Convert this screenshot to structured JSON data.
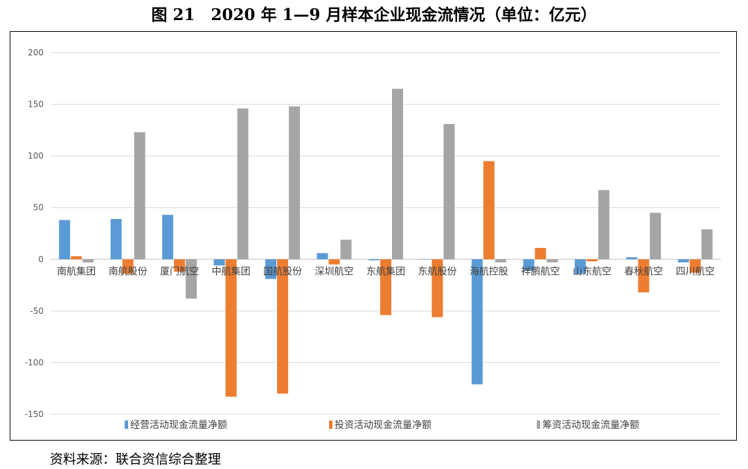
{
  "title": "图 21　2020 年 1—9 月样本企业现金流情况（单位：亿元）",
  "source": "资料来源：联合资信综合整理",
  "chart_data": {
    "type": "bar",
    "title": "图 21　2020 年 1—9 月样本企业现金流情况（单位：亿元）",
    "xlabel": "",
    "ylabel": "",
    "ylim": [
      -150,
      200
    ],
    "yticks": [
      200,
      150,
      100,
      50,
      0,
      -50,
      -100,
      -150
    ],
    "grid": true,
    "legend_position": "bottom",
    "categories": [
      "南航集团",
      "南航股份",
      "厦门航空",
      "中航集团",
      "国航股份",
      "深圳航空",
      "东航集团",
      "东航股份",
      "海航控股",
      "祥鹏航空",
      "山东航空",
      "春秋航空",
      "四川航空"
    ],
    "series": [
      {
        "name": "经营活动现金流量净额",
        "color": "#5b9bd5",
        "values": [
          38,
          39,
          43,
          -6,
          -19,
          6,
          -1,
          0,
          -121,
          -11,
          -14,
          2,
          -3
        ]
      },
      {
        "name": "投资活动现金流量净额",
        "color": "#ed7d31",
        "values": [
          3,
          -14,
          -12,
          -133,
          -130,
          -5,
          -54,
          -56,
          95,
          11,
          -2,
          -32,
          -13
        ]
      },
      {
        "name": "筹资活动现金流量净额",
        "color": "#a5a5a5",
        "values": [
          -3,
          123,
          -38,
          146,
          148,
          19,
          165,
          131,
          -3,
          -3,
          67,
          45,
          29
        ]
      }
    ]
  }
}
